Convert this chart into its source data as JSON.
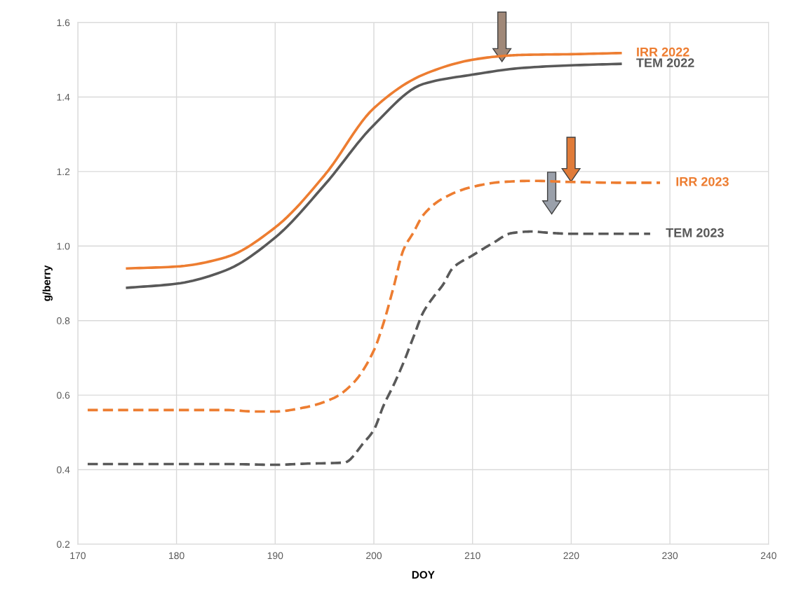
{
  "chart_data": {
    "type": "line",
    "xlabel": "DOY",
    "ylabel": "g/berry",
    "xlim": [
      170,
      240
    ],
    "xticks": [
      170,
      180,
      190,
      200,
      210,
      220,
      230,
      240
    ],
    "ylim": [
      0.2,
      1.6
    ],
    "yticks": [
      {
        "value": 0.2,
        "label": "0.2"
      },
      {
        "value": 0.4,
        "label": "0.4"
      },
      {
        "value": 0.6,
        "label": "0.6"
      },
      {
        "value": 0.8,
        "label": "0.8"
      },
      {
        "value": 1.0,
        "label": "1.0"
      },
      {
        "value": 1.2,
        "label": "1.2"
      },
      {
        "value": 1.4,
        "label": "1.4"
      },
      {
        "value": 1.6,
        "label": "1.6"
      }
    ],
    "grid": true,
    "series": [
      {
        "name": "IRR 2022",
        "color": "#ed7d31",
        "line_style": "solid",
        "x": [
          175,
          180,
          185,
          190,
          195,
          200,
          205,
          210,
          213,
          215,
          220,
          225
        ],
        "values": [
          0.94,
          0.945,
          0.97,
          1.05,
          1.19,
          1.37,
          1.46,
          1.5,
          1.51,
          1.513,
          1.515,
          1.518
        ]
      },
      {
        "name": "TEM 2022",
        "color": "#595959",
        "line_style": "solid",
        "x": [
          175,
          180,
          185,
          190,
          195,
          200,
          205,
          210,
          215,
          220,
          225
        ],
        "values": [
          0.888,
          0.899,
          0.935,
          1.023,
          1.164,
          1.325,
          1.435,
          1.46,
          1.478,
          1.485,
          1.489
        ]
      },
      {
        "name": "IRR 2023",
        "color": "#ed7d31",
        "line_style": "dashed",
        "x": [
          171,
          175,
          180,
          185,
          188,
          190,
          193,
          196,
          198,
          200,
          201,
          202,
          203,
          204,
          205,
          207,
          210,
          213,
          216,
          220,
          225,
          229
        ],
        "values": [
          0.56,
          0.56,
          0.56,
          0.56,
          0.556,
          0.556,
          0.567,
          0.593,
          0.635,
          0.72,
          0.795,
          0.89,
          0.99,
          1.036,
          1.083,
          1.128,
          1.159,
          1.172,
          1.175,
          1.172,
          1.17,
          1.17
        ]
      },
      {
        "name": "TEM 2023",
        "color": "#595959",
        "line_style": "dashed",
        "x": [
          171,
          175,
          180,
          185,
          190,
          193,
          197,
          199,
          200,
          201,
          202,
          203,
          204,
          205,
          206,
          207,
          208,
          210,
          212,
          214,
          216,
          218,
          220,
          225,
          228
        ],
        "values": [
          0.415,
          0.415,
          0.415,
          0.415,
          0.413,
          0.416,
          0.419,
          0.473,
          0.507,
          0.573,
          0.627,
          0.687,
          0.755,
          0.822,
          0.862,
          0.896,
          0.941,
          0.975,
          1.007,
          1.035,
          1.039,
          1.035,
          1.033,
          1.033,
          1.033
        ]
      }
    ]
  }
}
